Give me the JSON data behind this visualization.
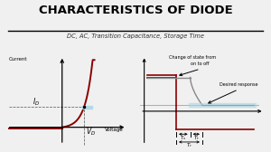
{
  "title": "CHARACTERISTICS OF DIODE",
  "subtitle": "DC, AC, Transition Capacitance, Storage Time",
  "bg_color": "#f0f0f0",
  "title_color": "#000000",
  "subtitle_color": "#333333",
  "diode_curve_color": "#8b0000",
  "highlight_color": "#add8e6",
  "step_color": "#8b0000",
  "desired_color": "#888888",
  "left_label_current": "Current",
  "left_label_voltage": "Voltage",
  "right_label1": "Change of state from",
  "right_label2": "on to off",
  "right_label3": "Desired response"
}
